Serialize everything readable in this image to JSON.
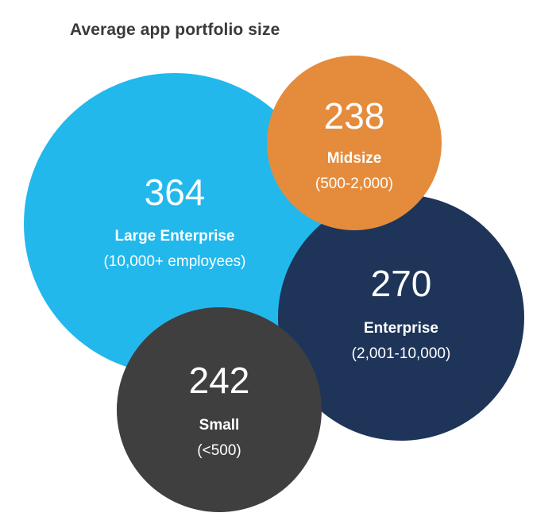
{
  "chart_data": {
    "type": "bubble",
    "title": "Average app portfolio size",
    "bubbles": [
      {
        "key": "large-enterprise",
        "value": 364,
        "value_text": "364",
        "label": "Large Enterprise",
        "sublabel": "(10,000+ employees)",
        "color": "#22b8ec"
      },
      {
        "key": "enterprise",
        "value": 270,
        "value_text": "270",
        "label": "Enterprise",
        "sublabel": "(2,001-10,000)",
        "color": "#1e3459"
      },
      {
        "key": "small",
        "value": 242,
        "value_text": "242",
        "label": "Small",
        "sublabel": "(<500)",
        "color": "#3f3f3f"
      },
      {
        "key": "midsize",
        "value": 238,
        "value_text": "238",
        "label": "Midsize",
        "sublabel": "(500-2,000)",
        "color": "#e58b3c"
      }
    ]
  }
}
